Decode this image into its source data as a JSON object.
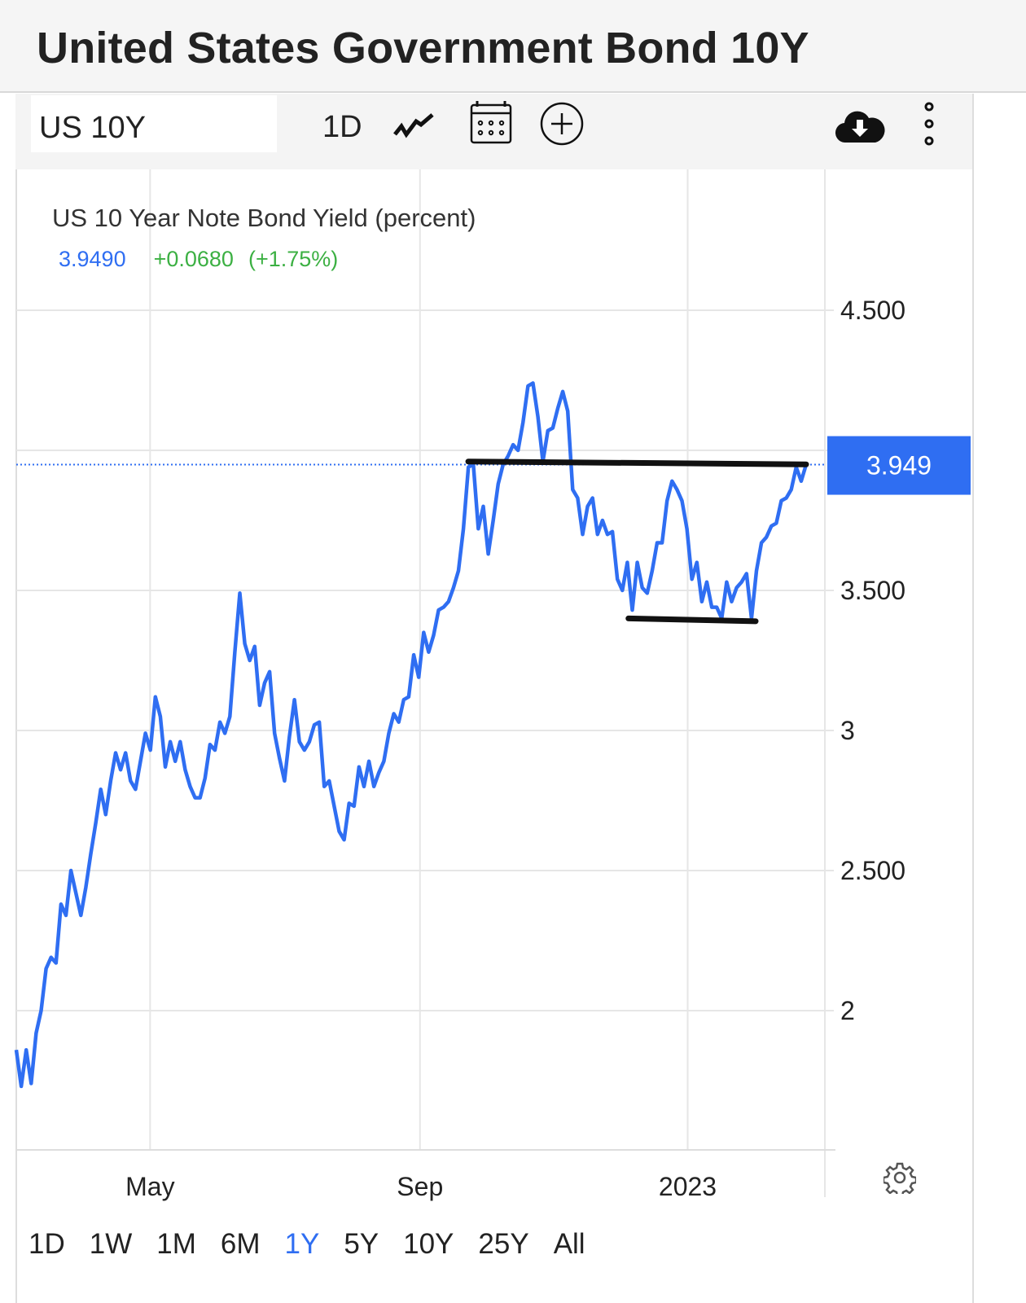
{
  "header": {
    "title": "United States Government Bond 10Y"
  },
  "toolbar": {
    "symbol": "US 10Y",
    "interval": "1D",
    "icons": [
      "line-chart-icon",
      "calendar-icon",
      "plus-circle-icon",
      "cloud-download-icon",
      "more-vertical-icon"
    ]
  },
  "legend": {
    "series_label": "US 10 Year Note Bond Yield (percent)",
    "last": "3.9490",
    "change": "+0.0680",
    "change_pct": "(+1.75%)",
    "last_color": "#2f6ef2",
    "change_color": "#3cb043"
  },
  "ranges": {
    "items": [
      "1D",
      "1W",
      "1M",
      "6M",
      "1Y",
      "5Y",
      "10Y",
      "25Y",
      "All"
    ],
    "active": "1Y"
  },
  "colors": {
    "line": "#2f6ef2",
    "annotation": "#111111",
    "grid": "#e6e6e6"
  },
  "chart_data": {
    "type": "line",
    "title": "",
    "xlabel": "",
    "ylabel": "",
    "xlim": [
      "2022-03-01",
      "2023-02-24"
    ],
    "ylim": [
      1.6,
      4.98
    ],
    "grid": true,
    "y_axis_position": "right",
    "x_ticks": [
      {
        "date": "2022-05-01",
        "label": "May"
      },
      {
        "date": "2022-09-01",
        "label": "Sep"
      },
      {
        "date": "2023-01-01",
        "label": "2023"
      }
    ],
    "y_ticks": [
      {
        "value": 4.5,
        "label": "4.500"
      },
      {
        "value": 4.0,
        "label": ""
      },
      {
        "value": 3.5,
        "label": "3.500"
      },
      {
        "value": 3.0,
        "label": "3"
      },
      {
        "value": 2.5,
        "label": "2.500"
      },
      {
        "value": 2.0,
        "label": "2"
      }
    ],
    "last_value_label": "3.949",
    "last_value": 3.949,
    "series": [
      {
        "values": [
          1.86,
          1.73,
          1.86,
          1.74,
          1.92,
          2.0,
          2.15,
          2.19,
          2.17,
          2.38,
          2.34,
          2.5,
          2.42,
          2.34,
          2.44,
          2.56,
          2.67,
          2.79,
          2.7,
          2.82,
          2.92,
          2.86,
          2.92,
          2.82,
          2.79,
          2.89,
          2.99,
          2.93,
          3.12,
          3.05,
          2.87,
          2.96,
          2.89,
          2.96,
          2.86,
          2.8,
          2.76,
          2.76,
          2.83,
          2.95,
          2.93,
          3.03,
          2.99,
          3.05,
          3.28,
          3.49,
          3.31,
          3.25,
          3.3,
          3.09,
          3.17,
          3.21,
          2.99,
          2.9,
          2.82,
          2.98,
          3.11,
          2.96,
          2.93,
          2.96,
          3.02,
          3.03,
          2.8,
          2.82,
          2.73,
          2.64,
          2.61,
          2.74,
          2.73,
          2.87,
          2.8,
          2.89,
          2.8,
          2.85,
          2.89,
          2.99,
          3.06,
          3.03,
          3.11,
          3.12,
          3.27,
          3.19,
          3.35,
          3.28,
          3.34,
          3.43,
          3.44,
          3.46,
          3.51,
          3.57,
          3.72,
          3.94,
          3.95,
          3.72,
          3.8,
          3.63,
          3.75,
          3.88,
          3.95,
          3.98,
          4.02,
          4.0,
          4.1,
          4.23,
          4.24,
          4.12,
          3.96,
          4.07,
          4.08,
          4.15,
          4.21,
          4.14,
          3.86,
          3.83,
          3.7,
          3.8,
          3.83,
          3.7,
          3.75,
          3.7,
          3.71,
          3.54,
          3.5,
          3.6,
          3.43,
          3.6,
          3.51,
          3.49,
          3.57,
          3.67,
          3.67,
          3.82,
          3.89,
          3.86,
          3.82,
          3.72,
          3.54,
          3.6,
          3.46,
          3.53,
          3.44,
          3.44,
          3.4,
          3.53,
          3.46,
          3.51,
          3.53,
          3.56,
          3.4,
          3.57,
          3.67,
          3.69,
          3.73,
          3.74,
          3.82,
          3.83,
          3.86,
          3.94,
          3.89,
          3.949
        ]
      }
    ],
    "annotations": [
      {
        "type": "hand-drawn-line",
        "from": [
          "2022-09-23",
          3.96
        ],
        "to": [
          "2023-02-24",
          3.95
        ]
      },
      {
        "type": "hand-drawn-line",
        "from": [
          "2022-12-05",
          3.4
        ],
        "to": [
          "2023-02-01",
          3.39
        ]
      }
    ]
  }
}
